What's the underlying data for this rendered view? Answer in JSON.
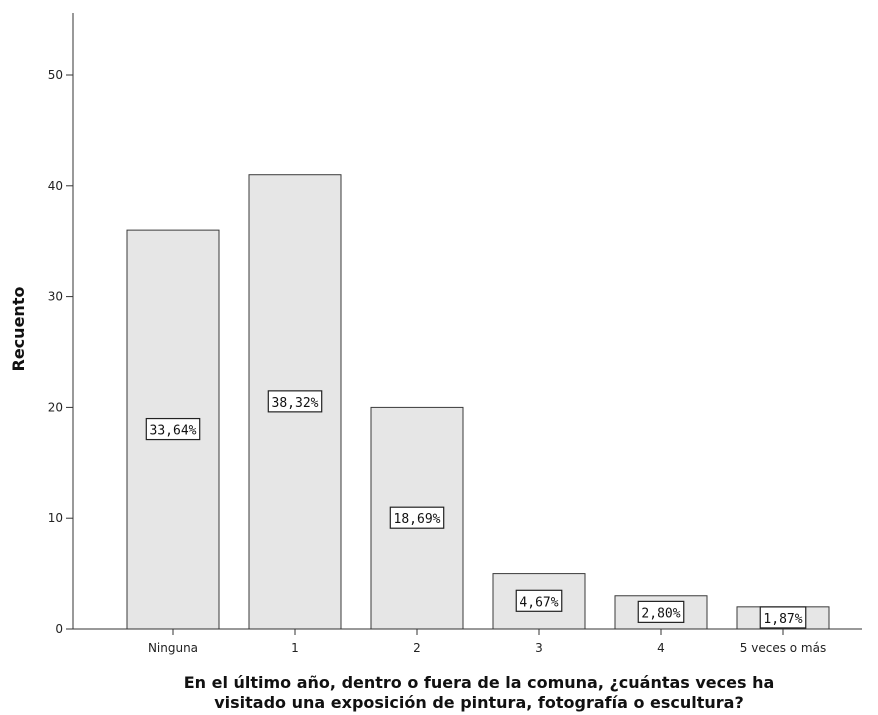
{
  "chart_data": {
    "type": "bar",
    "categories": [
      "Ninguna",
      "1",
      "2",
      "3",
      "4",
      "5 veces o más"
    ],
    "values": [
      36,
      41,
      20,
      5,
      3,
      2
    ],
    "data_labels": [
      "33,64%",
      "38,32%",
      "18,69%",
      "4,67%",
      "2,80%",
      "1,87%"
    ],
    "ylabel": "Recuento",
    "xlabel_lines": [
      "En el último año, dentro o fuera de la comuna, ¿cuántas veces ha",
      "visitado una exposición de pintura, fotografía o escultura?"
    ],
    "ylim": [
      0,
      55
    ],
    "yticks": [
      0,
      10,
      20,
      30,
      40,
      50
    ],
    "grid": false,
    "legend": "none",
    "colors": {
      "bar_fill": "#e6e6e6",
      "bar_stroke": "#3a3a3a",
      "axis": "#333333"
    }
  }
}
